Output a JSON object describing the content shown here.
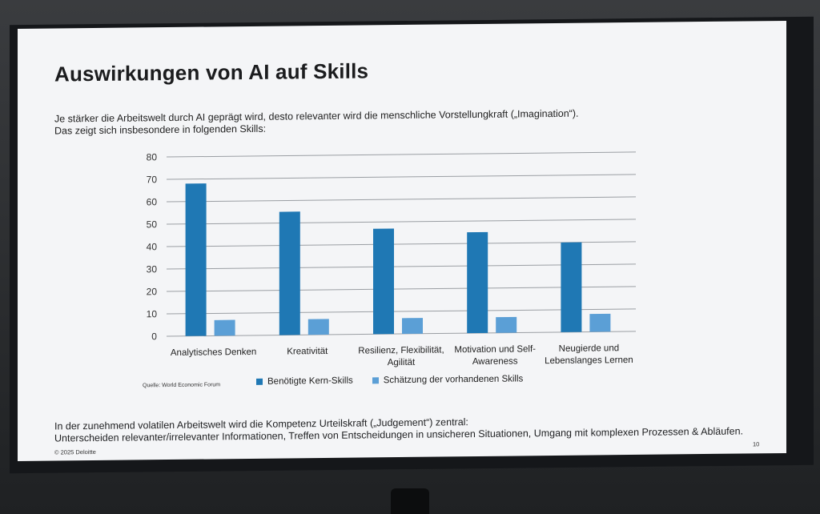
{
  "slide": {
    "title": "Auswirkungen von AI auf Skills",
    "subtitle_lines": [
      "Je stärker die Arbeitswelt durch AI geprägt wird, desto relevanter wird die menschliche Vorstellungkraft („Imagination“).",
      "Das zeigt sich insbesondere in folgenden Skills:"
    ],
    "source": "Quelle: World Economic Forum",
    "footer_lines": [
      "In der zunehmend volatilen Arbeitswelt wird die Kompetenz Urteilskraft („Judgement“) zentral:",
      "Unterscheiden relevanter/irrelevanter Informationen, Treffen von Entscheidungen in unsicheren Situationen, Umgang mit komplexen Prozessen & Abläufen."
    ],
    "copyright": "© 2025 Deloitte",
    "page_number": "10"
  },
  "colors": {
    "series_dark": "#1f78b4",
    "series_light": "#5b9fd6",
    "grid": "#9a9ea3"
  },
  "chart_data": {
    "type": "bar",
    "categories": [
      [
        "Analytisches Denken"
      ],
      [
        "Kreativität"
      ],
      [
        "Resilienz, Flexibilität,",
        "Agilität"
      ],
      [
        "Motivation und Self-",
        "Awareness"
      ],
      [
        "Neugierde und",
        "Lebenslanges Lernen"
      ]
    ],
    "series": [
      {
        "name": "Benötigte Kern-Skills",
        "values": [
          68,
          55,
          47,
          45,
          40
        ]
      },
      {
        "name": "Schätzung der vorhandenen Skills",
        "values": [
          7,
          7,
          7,
          7,
          8
        ]
      }
    ],
    "ylim": [
      0,
      80
    ],
    "yticks": [
      0,
      10,
      20,
      30,
      40,
      50,
      60,
      70,
      80
    ],
    "grid": true,
    "legend": "bottom"
  }
}
